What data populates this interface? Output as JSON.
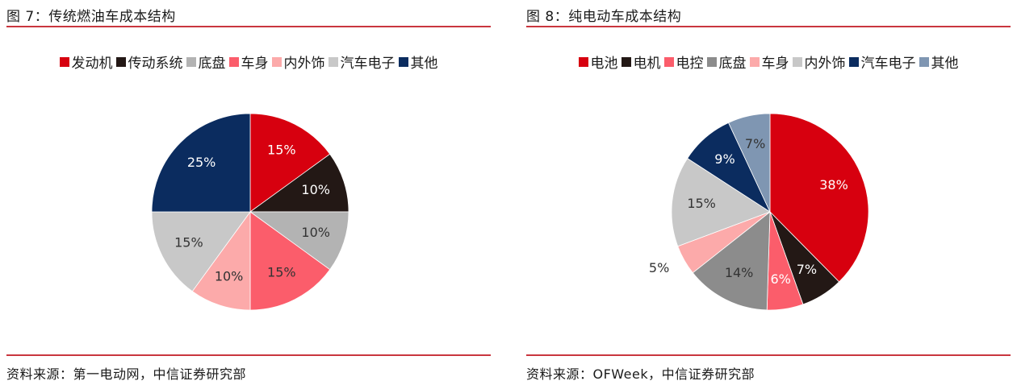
{
  "charts": [
    {
      "title": "图 7：传统燃油车成本结构",
      "source": "资料来源：第一电动网，中信证券研究部",
      "chart_data": {
        "type": "pie",
        "labels": [
          "发动机",
          "传动系统",
          "底盘",
          "车身",
          "内外饰",
          "汽车电子",
          "其他"
        ],
        "values": [
          15,
          10,
          10,
          15,
          10,
          15,
          25
        ],
        "value_labels": [
          "15%",
          "10%",
          "10%",
          "15%",
          "10%",
          "15%",
          "25%"
        ],
        "colors": [
          "#d7000f",
          "#231815",
          "#b3b3b3",
          "#fb5d6b",
          "#fcaaaa",
          "#c8c8c8",
          "#0b2c5f"
        ],
        "label_colors": [
          "#ffffff",
          "#ffffff",
          "#333333",
          "#333333",
          "#333333",
          "#333333",
          "#ffffff"
        ],
        "legend_position": "top"
      }
    },
    {
      "title": "图 8：纯电动车成本结构",
      "source": "资料来源：OFWeek，中信证券研究部",
      "chart_data": {
        "type": "pie",
        "labels": [
          "电池",
          "电机",
          "电控",
          "底盘",
          "车身",
          "内外饰",
          "汽车电子",
          "其他"
        ],
        "values": [
          38,
          7,
          6,
          14,
          5,
          15,
          9,
          7
        ],
        "value_labels": [
          "38%",
          "7%",
          "6%",
          "14%",
          "5%",
          "15%",
          "9%",
          "7%"
        ],
        "colors": [
          "#d7000f",
          "#231815",
          "#fb5d6b",
          "#8c8c8c",
          "#fcaaaa",
          "#c8c8c8",
          "#0b2c5f",
          "#7f96b2"
        ],
        "label_colors": [
          "#ffffff",
          "#ffffff",
          "#ffffff",
          "#333333",
          "#333333",
          "#333333",
          "#ffffff",
          "#333333"
        ],
        "legend_position": "top"
      }
    }
  ]
}
